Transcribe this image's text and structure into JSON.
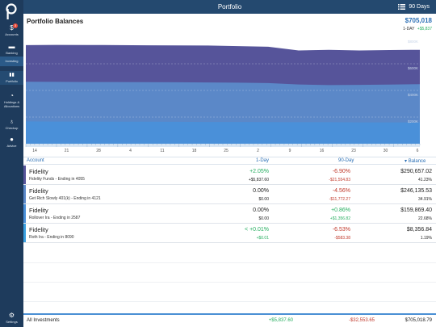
{
  "app": {
    "title": "Portfolio",
    "range_label": "90 Days"
  },
  "sidebar": {
    "items": [
      {
        "label": "Accounts",
        "icon": "dollar-icon",
        "badge": "3",
        "active": false
      },
      {
        "label": "Banking",
        "icon": "bank-icon",
        "active": false
      },
      {
        "label": "Investing",
        "icon": "investing-icon",
        "active": true
      },
      {
        "label": "Portfolio",
        "icon": "bar-chart-icon",
        "active": true
      },
      {
        "label": "Holdings & Allocations",
        "icon": "pie-icon",
        "active": false
      },
      {
        "label": "Checkup",
        "icon": "stethoscope-icon",
        "active": false
      },
      {
        "label": "Advice",
        "icon": "advice-icon",
        "active": false
      },
      {
        "label": "Settings",
        "icon": "gear-icon",
        "active": false
      }
    ]
  },
  "summary": {
    "title": "Portfolio Balances",
    "total": "$705,018",
    "day_label": "1-DAY",
    "day_change": "+$5,837"
  },
  "chart_data": {
    "type": "area",
    "x_ticks": [
      "14",
      "21",
      "28",
      "4",
      "11",
      "18",
      "25",
      "2",
      "9",
      "16",
      "23",
      "30",
      "6"
    ],
    "y_ticks": [
      "$800K",
      "$600K",
      "$400K",
      "$200K"
    ],
    "ylim": [
      0,
      800000
    ],
    "colors": [
      "#4a90d9",
      "#5b88c8",
      "#56549a"
    ],
    "series": [
      {
        "values": [
          167000,
          166000,
          166000,
          165000,
          165000,
          164000,
          163000,
          163000,
          162000,
          161000,
          161000,
          160000,
          160000,
          160000
        ]
      },
      {
        "values": [
          465000,
          464000,
          463000,
          463000,
          462000,
          461000,
          460000,
          458000,
          455000,
          445000,
          440000,
          442000,
          444000,
          447000
        ]
      },
      {
        "values": [
          740000,
          742000,
          741000,
          740000,
          739000,
          738000,
          737000,
          733000,
          728000,
          700000,
          705000,
          700000,
          703000,
          705000
        ]
      }
    ]
  },
  "table": {
    "headers": {
      "account": "Account",
      "day": "1-Day",
      "ninety": "90-Day",
      "balance": "Balance"
    },
    "rows": [
      {
        "name": "Fidelity",
        "account": "Fidelity Funds - Ending in 4055",
        "day_pct": "+2.05%",
        "day_amt": "+$5,837.60",
        "ninety_pct": "-6.90%",
        "ninety_amt": "-$21,554.83",
        "balance": "$290,657.02",
        "share": "41.23%",
        "accent": "#56549a"
      },
      {
        "name": "Fidelity",
        "account": "Get Rich Slowly 401(k) - Ending in 4121",
        "day_pct": "0.00%",
        "day_amt": "$0.00",
        "ninety_pct": "-4.56%",
        "ninety_amt": "-$11,772.27",
        "balance": "$246,135.53",
        "share": "34.91%",
        "accent": "#5b88c8"
      },
      {
        "name": "Fidelity",
        "account": "Rollover Ira - Ending in 2587",
        "day_pct": "0.00%",
        "day_amt": "$0.00",
        "ninety_pct": "+0.86%",
        "ninety_amt": "+$1,356.82",
        "balance": "$159,869.40",
        "share": "22.68%",
        "accent": "#4a90d9"
      },
      {
        "name": "Fidelity",
        "account": "Roth Ira - Ending in 8090",
        "day_pct": "< +0.01%",
        "day_amt": "+$0.01",
        "ninety_pct": "-6.53%",
        "ninety_amt": "-$583.38",
        "balance": "$8,356.84",
        "share": "1.19%",
        "accent": "#3aa0e0"
      }
    ],
    "footer": {
      "label": "All Investments",
      "day": "+$5,837.60",
      "ninety": "-$32,553.65",
      "balance": "$705,018.79"
    }
  }
}
